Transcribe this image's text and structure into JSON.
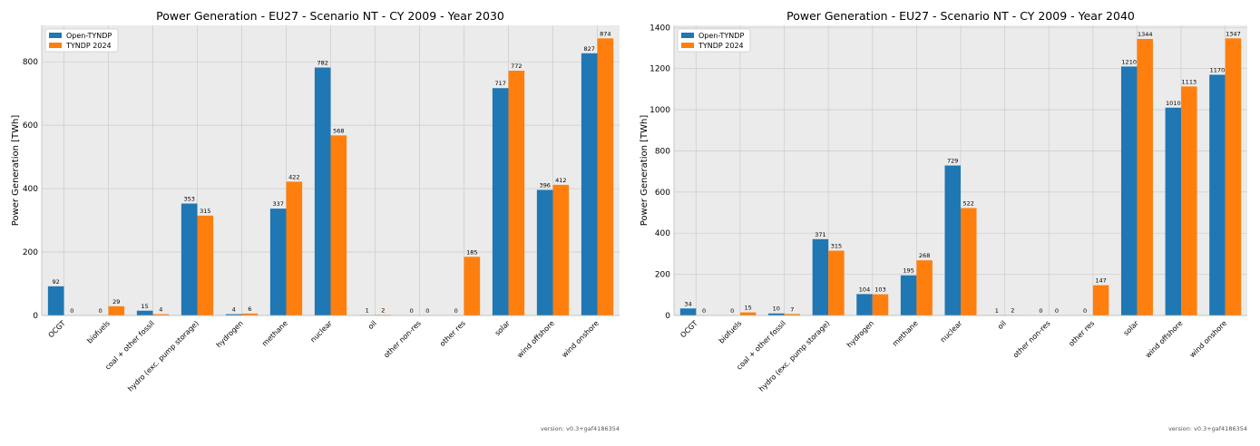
{
  "colors": {
    "open": "#1f77b4",
    "tyndp": "#ff7f0e",
    "panel": "#ebebeb",
    "grid": "#cfcfcf"
  },
  "chart_data": [
    {
      "type": "bar",
      "title": "Power Generation - EU27 - Scenario NT - CY 2009 - Year 2030",
      "xlabel": "",
      "ylabel": "Power Generation [TWh]",
      "ylim": [
        0,
        915
      ],
      "yticks": [
        0,
        200,
        400,
        600,
        800
      ],
      "legend_position": "top-left",
      "categories": [
        "OCGT",
        "biofuels",
        "coal + other fossil",
        "hydro (exc. pump storage)",
        "hydrogen",
        "methane",
        "nuclear",
        "oil",
        "other non-res",
        "other res",
        "solar",
        "wind offshore",
        "wind onshore"
      ],
      "series": [
        {
          "name": "Open-TYNDP",
          "values": [
            92,
            0,
            15,
            353,
            4,
            337,
            782,
            1,
            0,
            0,
            717,
            396,
            827
          ]
        },
        {
          "name": "TYNDP 2024",
          "values": [
            0,
            29,
            4,
            315,
            6,
            422,
            568,
            2,
            0,
            185,
            772,
            412,
            874
          ]
        }
      ]
    },
    {
      "type": "bar",
      "title": "Power Generation - EU27 - Scenario NT - CY 2009 - Year 2040",
      "xlabel": "",
      "ylabel": "Power Generation [TWh]",
      "ylim": [
        0,
        1410
      ],
      "yticks": [
        0,
        200,
        400,
        600,
        800,
        1000,
        1200,
        1400
      ],
      "legend_position": "top-left",
      "categories": [
        "OCGT",
        "biofuels",
        "coal + other fossil",
        "hydro (exc. pump storage)",
        "hydrogen",
        "methane",
        "nuclear",
        "oil",
        "other non-res",
        "other res",
        "solar",
        "wind offshore",
        "wind onshore"
      ],
      "series": [
        {
          "name": "Open-TYNDP",
          "values": [
            34,
            0,
            10,
            371,
            104,
            195,
            729,
            1,
            0,
            0,
            1210,
            1010,
            1170
          ]
        },
        {
          "name": "TYNDP 2024",
          "values": [
            0,
            15,
            7,
            315,
            103,
            268,
            522,
            2,
            0,
            147,
            1344,
            1113,
            1347
          ]
        }
      ]
    }
  ],
  "footer": {
    "version_left": "version: v0.3+gaf4186354",
    "version_right": "version: v0.3+gaf4186354"
  }
}
